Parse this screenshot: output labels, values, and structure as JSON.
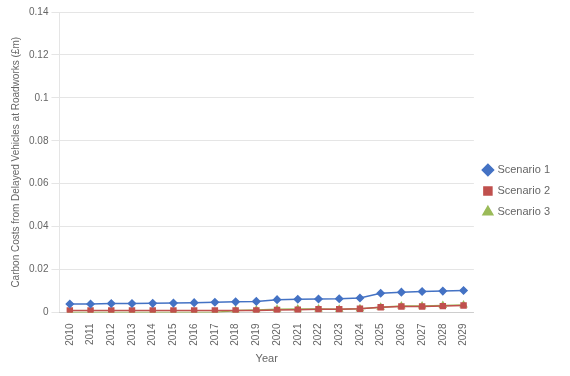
{
  "chart_data": {
    "type": "line",
    "xlabel": "Year",
    "ylabel": "Carbon Costs from Delayed Vehicles at Roadworks (£m)",
    "x": [
      2010,
      2011,
      2012,
      2013,
      2014,
      2015,
      2016,
      2017,
      2018,
      2019,
      2020,
      2021,
      2022,
      2023,
      2024,
      2025,
      2026,
      2027,
      2028,
      2029
    ],
    "series": [
      {
        "name": "Scenario 1",
        "color": "#4472C4",
        "marker": "diamond",
        "values": [
          0.004,
          0.004,
          0.0042,
          0.0042,
          0.0043,
          0.0044,
          0.0046,
          0.0048,
          0.005,
          0.0052,
          0.006,
          0.0062,
          0.0063,
          0.0064,
          0.0068,
          0.009,
          0.0095,
          0.0098,
          0.01,
          0.0103
        ]
      },
      {
        "name": "Scenario 2",
        "color": "#C0504D",
        "marker": "square",
        "values": [
          0.001,
          0.001,
          0.001,
          0.001,
          0.001,
          0.001,
          0.001,
          0.001,
          0.001,
          0.001,
          0.0012,
          0.0013,
          0.0015,
          0.0015,
          0.0018,
          0.0025,
          0.0028,
          0.0028,
          0.003,
          0.0033
        ]
      },
      {
        "name": "Scenario 3",
        "color": "#9BBB59",
        "marker": "triangle",
        "values": [
          0.0,
          0.0,
          0.0,
          0.0,
          0.0,
          0.0,
          0.0,
          0.0,
          0.001,
          0.0012,
          0.0015,
          0.0016,
          0.0017,
          0.0015,
          0.0018,
          0.0025,
          0.003,
          0.003,
          0.0033,
          0.0035
        ]
      }
    ],
    "xlim": [
      2009.5,
      2029.5
    ],
    "xticks": [
      2010,
      2011,
      2012,
      2013,
      2014,
      2015,
      2016,
      2017,
      2018,
      2019,
      2020,
      2021,
      2022,
      2023,
      2024,
      2025,
      2026,
      2027,
      2028,
      2029
    ],
    "ylim": [
      0,
      0.14
    ],
    "yticks": [
      0,
      0.02,
      0.04,
      0.06,
      0.08,
      0.1,
      0.12,
      0.14
    ],
    "grid": "y",
    "legend": "right"
  }
}
